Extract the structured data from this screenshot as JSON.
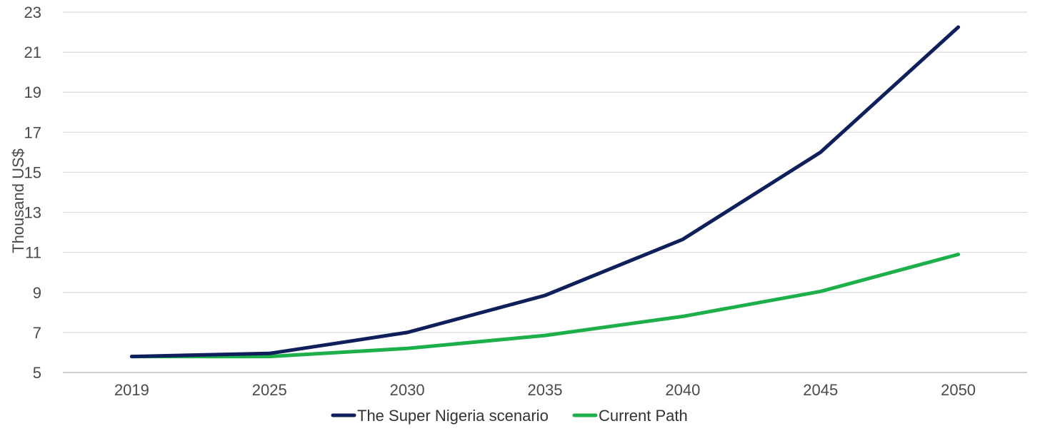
{
  "chart_data": {
    "type": "line",
    "title": "",
    "xlabel": "",
    "ylabel": "Thousand US$",
    "categories": [
      "2019",
      "2025",
      "2030",
      "2035",
      "2040",
      "2045",
      "2050"
    ],
    "ylim": [
      5,
      23
    ],
    "yticks": [
      5,
      7,
      9,
      11,
      13,
      15,
      17,
      19,
      21,
      23
    ],
    "grid": true,
    "legend_position": "bottom",
    "series": [
      {
        "name": "The Super Nigeria scenario",
        "color": "#0f1f5c",
        "values": [
          5.8,
          5.95,
          7.0,
          8.85,
          11.65,
          16.0,
          22.25
        ]
      },
      {
        "name": "Current Path",
        "color": "#1db04a",
        "values": [
          5.8,
          5.8,
          6.2,
          6.85,
          7.8,
          9.05,
          10.9
        ]
      }
    ]
  }
}
